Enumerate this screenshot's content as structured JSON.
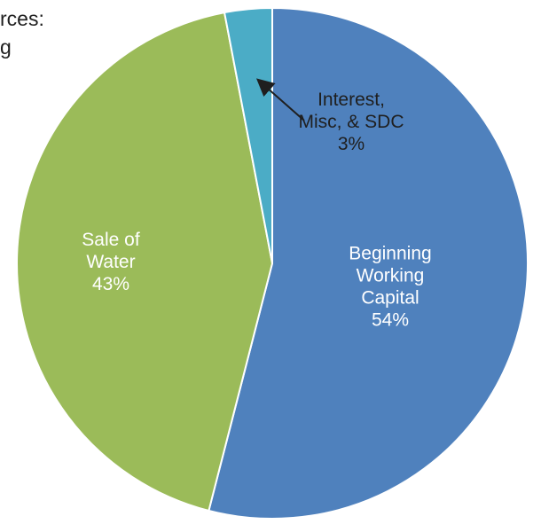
{
  "title_fragment": [
    "rces:",
    "g"
  ],
  "chart_data": {
    "type": "pie",
    "title": "",
    "slices": [
      {
        "label": [
          "Beginning",
          "Working",
          "Capital"
        ],
        "value": 54,
        "value_label": "54%",
        "color": "#4f81bd"
      },
      {
        "label": [
          "Sale of",
          "Water"
        ],
        "value": 43,
        "value_label": "43%",
        "color": "#9bbb59"
      },
      {
        "label": [
          "Interest,",
          "Misc, & SDC"
        ],
        "value": 3,
        "value_label": "3%",
        "color": "#4bacc6"
      }
    ],
    "label_color_inside": "#ffffff",
    "label_color_outside": "#1f1f1f",
    "leader_arrow_for": "Interest, Misc, & SDC"
  }
}
